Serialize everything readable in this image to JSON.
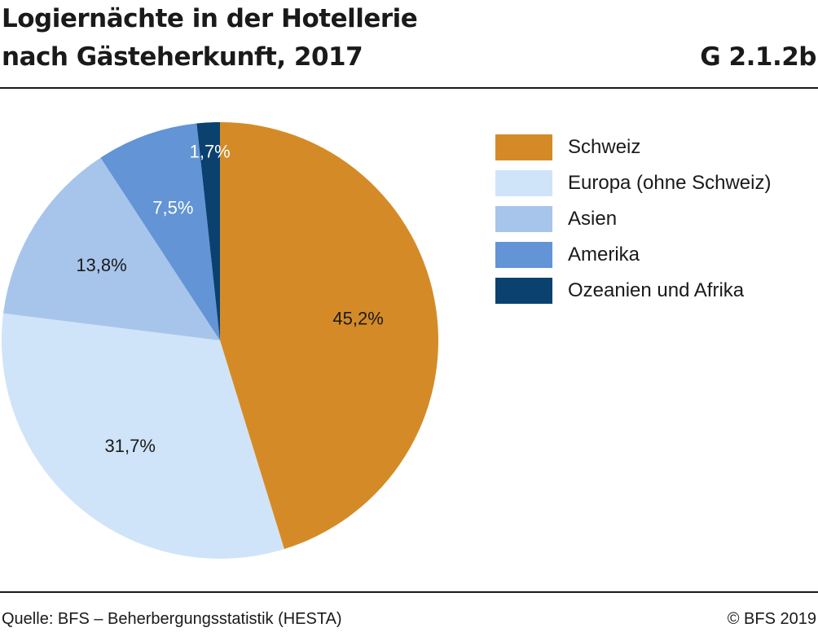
{
  "header": {
    "title_line1": "Logiernächte in der Hotellerie",
    "title_line2": "nach Gästeherkunft, 2017",
    "chart_id": "G 2.1.2b"
  },
  "footer": {
    "source": "Quelle: BFS – Beherbergungsstatistik (HESTA)",
    "copyright": "© BFS 2019"
  },
  "chart_data": {
    "type": "pie",
    "title": "Logiernächte in der Hotellerie nach Gästeherkunft, 2017",
    "legend_position": "right",
    "slices": [
      {
        "name": "Schweiz",
        "value": 45.2,
        "label": "45,2%",
        "color": "#d48b27",
        "label_color": "#1a1a1a"
      },
      {
        "name": "Europa (ohne Schweiz)",
        "value": 31.7,
        "label": "31,7%",
        "color": "#cfe4f8",
        "label_color": "#1a1a1a"
      },
      {
        "name": "Asien",
        "value": 13.8,
        "label": "13,8%",
        "color": "#a7c5eb",
        "label_color": "#1a1a1a"
      },
      {
        "name": "Amerika",
        "value": 7.5,
        "label": "7,5%",
        "color": "#6294d6",
        "label_color": "#ffffff"
      },
      {
        "name": "Ozeanien und Afrika",
        "value": 1.7,
        "label": "1,7%",
        "color": "#0b416f",
        "label_color": "#ffffff"
      }
    ]
  }
}
